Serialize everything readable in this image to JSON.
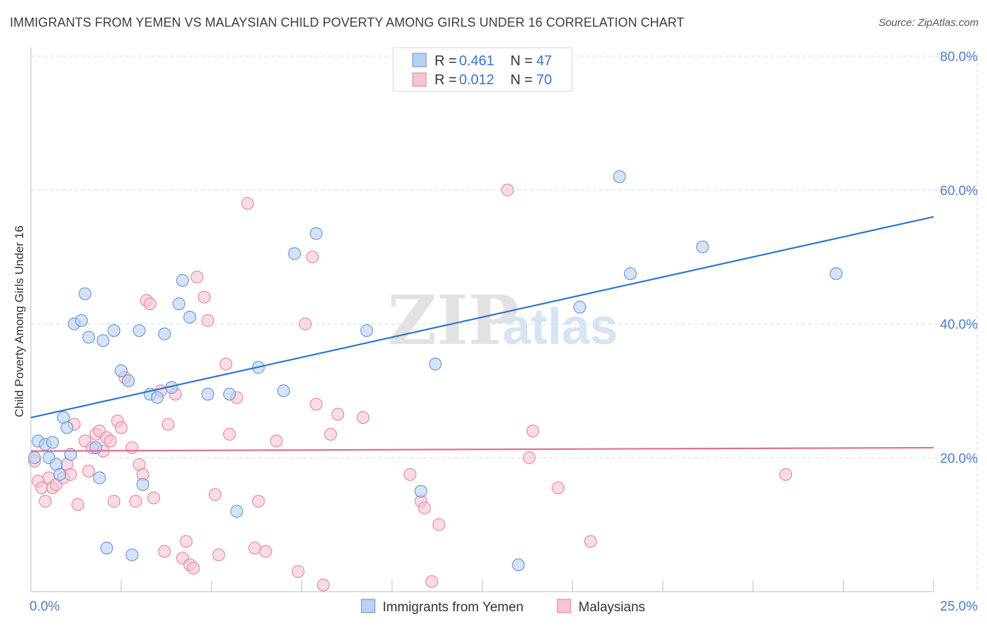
{
  "title": "IMMIGRANTS FROM YEMEN VS MALAYSIAN CHILD POVERTY AMONG GIRLS UNDER 16 CORRELATION CHART",
  "source": "Source: ZipAtlas.com",
  "watermark": {
    "zip": "ZIP",
    "atlas": "atlas"
  },
  "colors": {
    "blue_fill": "#b8d1f2",
    "blue_stroke": "#6d9ad8",
    "blue_line": "#2f74d0",
    "pink_fill": "#f7c4d3",
    "pink_stroke": "#e98aa8",
    "pink_line": "#e06d94",
    "tick_text": "#4a7cc9",
    "grid": "#d9d9d9"
  },
  "legend": {
    "rows": [
      {
        "r_label": "R =",
        "r_value": "0.461",
        "n_label": "N =",
        "n_value": "47"
      },
      {
        "r_label": "R =",
        "r_value": "0.012",
        "n_label": "N =",
        "n_value": "70"
      }
    ]
  },
  "chart_data": {
    "type": "scatter",
    "title": "IMMIGRANTS FROM YEMEN VS MALAYSIAN CHILD POVERTY AMONG GIRLS UNDER 16 CORRELATION CHART",
    "xlabel": "",
    "ylabel": "Child Poverty Among Girls Under 16",
    "xlim": [
      0,
      25
    ],
    "ylim": [
      0,
      80
    ],
    "x_tick_labels": [
      "0.0%",
      "25.0%"
    ],
    "y_ticks": [
      20,
      40,
      60,
      80
    ],
    "y_tick_labels": [
      "20.0%",
      "40.0%",
      "60.0%",
      "80.0%"
    ],
    "grid": true,
    "legend_position": "top-center",
    "series": [
      {
        "name": "Immigrants from Yemen",
        "color": "blue",
        "trend": {
          "x": [
            0,
            25
          ],
          "y": [
            26.0,
            56.0
          ]
        },
        "points": [
          [
            0.1,
            20.0
          ],
          [
            0.2,
            22.5
          ],
          [
            0.4,
            22.0
          ],
          [
            0.5,
            20.0
          ],
          [
            0.6,
            22.3
          ],
          [
            0.7,
            19.0
          ],
          [
            0.8,
            17.5
          ],
          [
            0.9,
            26.0
          ],
          [
            1.0,
            24.5
          ],
          [
            1.1,
            20.5
          ],
          [
            1.2,
            40.0
          ],
          [
            1.4,
            40.5
          ],
          [
            1.5,
            44.5
          ],
          [
            1.6,
            38.0
          ],
          [
            1.8,
            21.5
          ],
          [
            1.9,
            17.0
          ],
          [
            2.0,
            37.5
          ],
          [
            2.1,
            6.5
          ],
          [
            2.3,
            39.0
          ],
          [
            2.5,
            33.0
          ],
          [
            2.7,
            31.5
          ],
          [
            2.8,
            5.5
          ],
          [
            3.0,
            39.0
          ],
          [
            3.1,
            16.0
          ],
          [
            3.3,
            29.5
          ],
          [
            3.5,
            29.0
          ],
          [
            3.7,
            38.5
          ],
          [
            3.9,
            30.5
          ],
          [
            4.1,
            43.0
          ],
          [
            4.2,
            46.5
          ],
          [
            4.4,
            41.0
          ],
          [
            4.9,
            29.5
          ],
          [
            5.5,
            29.5
          ],
          [
            5.7,
            12.0
          ],
          [
            6.3,
            33.5
          ],
          [
            7.0,
            30.0
          ],
          [
            7.3,
            50.5
          ],
          [
            7.9,
            53.5
          ],
          [
            9.3,
            39.0
          ],
          [
            10.8,
            15.0
          ],
          [
            11.2,
            34.0
          ],
          [
            13.5,
            4.0
          ],
          [
            15.2,
            42.5
          ],
          [
            16.3,
            62.0
          ],
          [
            16.6,
            47.5
          ],
          [
            18.6,
            51.5
          ],
          [
            22.3,
            47.5
          ]
        ]
      },
      {
        "name": "Malaysians",
        "color": "pink",
        "trend": {
          "x": [
            0,
            25
          ],
          "y": [
            21.0,
            21.5
          ]
        },
        "points": [
          [
            0.1,
            19.5
          ],
          [
            0.2,
            16.5
          ],
          [
            0.3,
            15.5
          ],
          [
            0.4,
            13.5
          ],
          [
            0.5,
            17.0
          ],
          [
            0.6,
            15.5
          ],
          [
            0.7,
            16.0
          ],
          [
            0.9,
            17.0
          ],
          [
            1.0,
            19.0
          ],
          [
            1.1,
            17.5
          ],
          [
            1.2,
            25.0
          ],
          [
            1.3,
            13.0
          ],
          [
            1.5,
            22.5
          ],
          [
            1.6,
            18.0
          ],
          [
            1.7,
            21.5
          ],
          [
            1.8,
            23.5
          ],
          [
            1.9,
            24.0
          ],
          [
            2.0,
            21.0
          ],
          [
            2.1,
            23.0
          ],
          [
            2.2,
            22.5
          ],
          [
            2.3,
            13.5
          ],
          [
            2.4,
            25.5
          ],
          [
            2.5,
            24.5
          ],
          [
            2.6,
            32.0
          ],
          [
            2.8,
            21.5
          ],
          [
            2.9,
            13.5
          ],
          [
            3.0,
            19.0
          ],
          [
            3.1,
            17.5
          ],
          [
            3.2,
            43.5
          ],
          [
            3.3,
            43.0
          ],
          [
            3.4,
            14.0
          ],
          [
            3.6,
            30.0
          ],
          [
            3.7,
            6.0
          ],
          [
            3.8,
            25.0
          ],
          [
            4.0,
            29.5
          ],
          [
            4.2,
            5.0
          ],
          [
            4.3,
            7.5
          ],
          [
            4.4,
            4.0
          ],
          [
            4.5,
            3.5
          ],
          [
            4.6,
            47.0
          ],
          [
            4.8,
            44.0
          ],
          [
            4.9,
            40.5
          ],
          [
            5.1,
            14.5
          ],
          [
            5.2,
            5.5
          ],
          [
            5.4,
            34.0
          ],
          [
            5.5,
            23.5
          ],
          [
            5.7,
            29.0
          ],
          [
            6.0,
            58.0
          ],
          [
            6.2,
            6.5
          ],
          [
            6.3,
            13.5
          ],
          [
            6.5,
            6.0
          ],
          [
            6.8,
            22.5
          ],
          [
            7.4,
            3.0
          ],
          [
            7.6,
            40.0
          ],
          [
            7.8,
            50.0
          ],
          [
            7.9,
            28.0
          ],
          [
            8.1,
            1.0
          ],
          [
            8.3,
            23.5
          ],
          [
            8.5,
            26.5
          ],
          [
            9.2,
            26.0
          ],
          [
            10.5,
            17.5
          ],
          [
            10.8,
            13.5
          ],
          [
            10.9,
            12.5
          ],
          [
            11.1,
            1.5
          ],
          [
            11.3,
            10.0
          ],
          [
            13.2,
            60.0
          ],
          [
            13.8,
            20.0
          ],
          [
            13.9,
            24.0
          ],
          [
            14.6,
            15.5
          ],
          [
            15.5,
            7.5
          ],
          [
            20.9,
            17.5
          ]
        ]
      }
    ]
  }
}
